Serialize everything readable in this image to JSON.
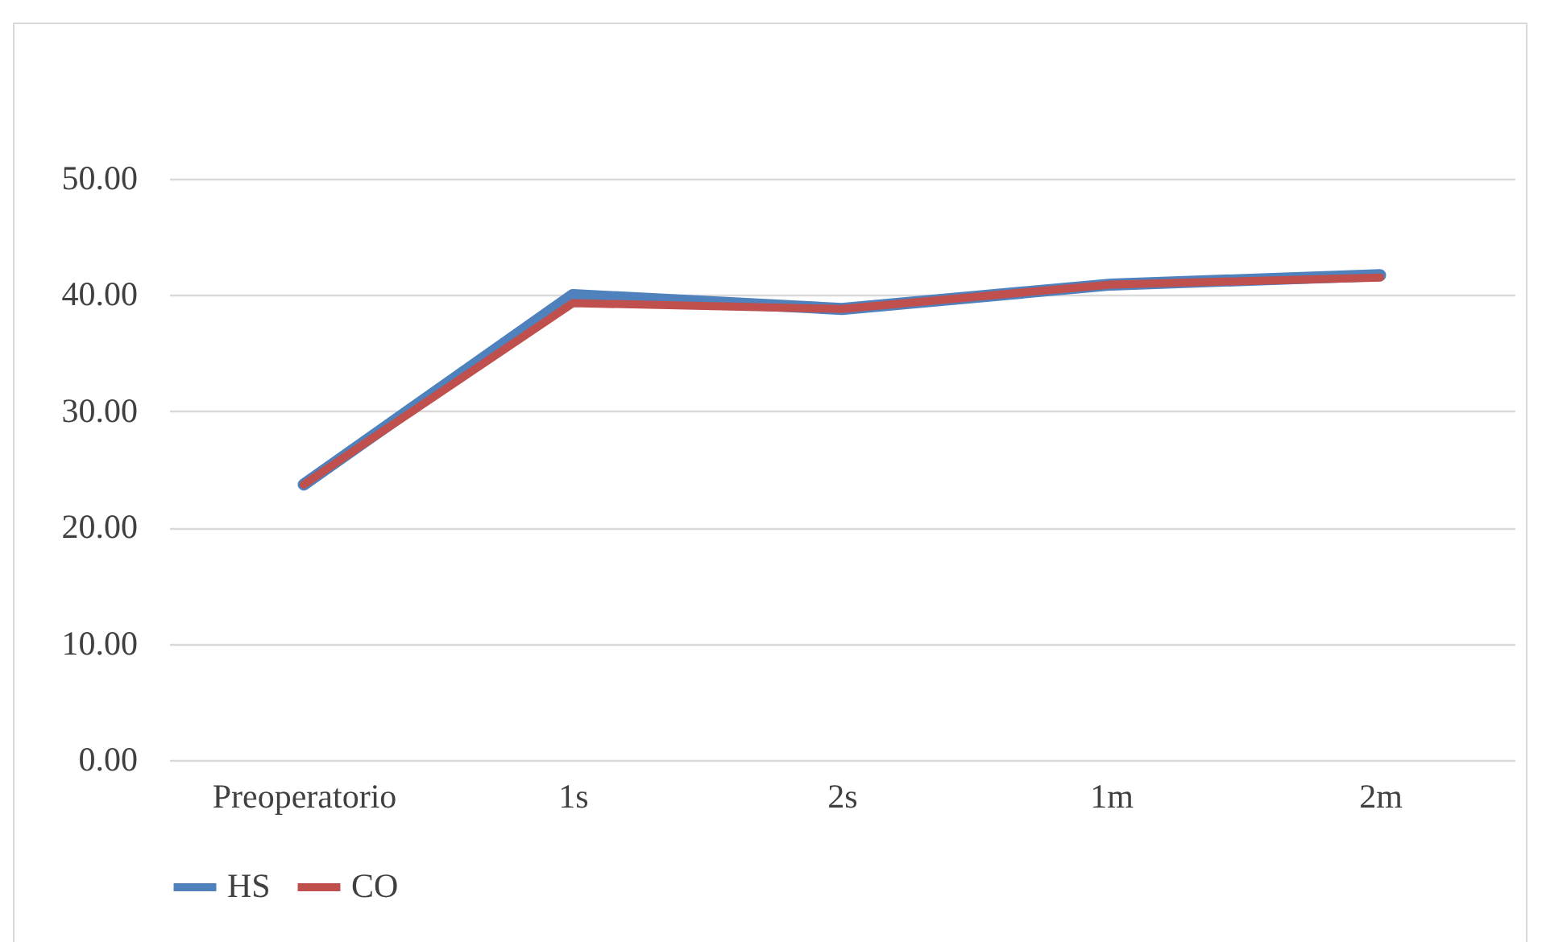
{
  "chart_data": {
    "type": "line",
    "categories": [
      "Preoperatorio",
      "1s",
      "2s",
      "1m",
      "2m"
    ],
    "series": [
      {
        "name": "HS",
        "color": "#4f81bd",
        "values": [
          23.7,
          40.0,
          38.8,
          40.9,
          41.7
        ]
      },
      {
        "name": "CO",
        "color": "#c0504d",
        "values": [
          23.7,
          39.3,
          38.8,
          40.9,
          41.5
        ]
      }
    ],
    "ylim": [
      0,
      50
    ],
    "yticks": [
      {
        "value": 0,
        "label": "0.00"
      },
      {
        "value": 10,
        "label": "10.00"
      },
      {
        "value": 20,
        "label": "20.00"
      },
      {
        "value": 30,
        "label": "30.00"
      },
      {
        "value": 40,
        "label": "40.00"
      },
      {
        "value": 50,
        "label": "50.00"
      }
    ],
    "grid": "y",
    "legend": "bottom",
    "marker": "none",
    "line_style": "solid"
  }
}
